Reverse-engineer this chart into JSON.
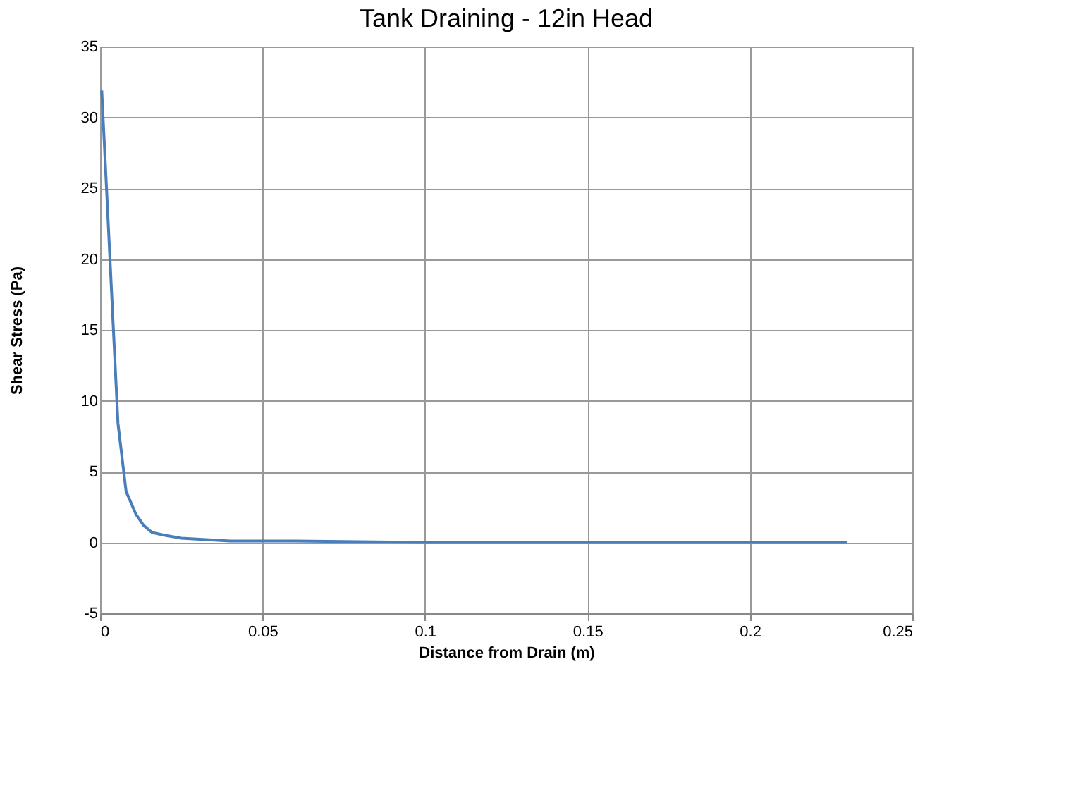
{
  "chart_data": {
    "type": "line",
    "title": "Tank Draining - 12in Head",
    "xlabel": "Distance from Drain (m)",
    "ylabel": "Shear Stress (Pa)",
    "series": [
      {
        "color": "#4a7ebb",
        "x": [
          0.0005,
          0.0055,
          0.008,
          0.011,
          0.0134,
          0.016,
          0.02,
          0.025,
          0.04,
          0.06,
          0.1,
          0.15,
          0.2,
          0.23
        ],
        "values": [
          31.9,
          8.4,
          3.6,
          2.0,
          1.2,
          0.7,
          0.5,
          0.3,
          0.1,
          0.1,
          0.0,
          0.0,
          0.0,
          0.0
        ]
      }
    ],
    "xlim": [
      0,
      0.25
    ],
    "xticks": [
      0,
      0.05,
      0.1,
      0.15,
      0.2,
      0.25
    ],
    "ylim": [
      -5,
      35
    ],
    "yticks": [
      -5,
      0,
      5,
      10,
      15,
      20,
      25,
      30,
      35
    ],
    "grid": true,
    "marker": "none",
    "line_style": "solid",
    "legend": false
  }
}
